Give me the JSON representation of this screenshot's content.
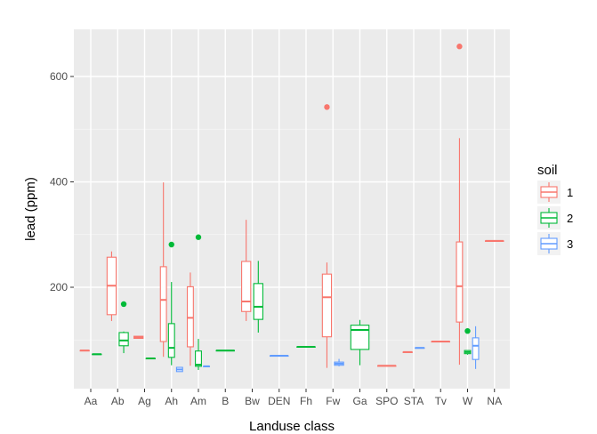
{
  "chart_data": {
    "type": "box",
    "title": "",
    "xlabel": "Landuse class",
    "ylabel": "lead (ppm)",
    "ylim": [
      0,
      690
    ],
    "y_ticks": [
      200,
      400,
      600
    ],
    "grid": true,
    "legend": {
      "title": "soil",
      "position": "right",
      "entries": [
        {
          "label": "1",
          "color": "#F8766D"
        },
        {
          "label": "2",
          "color": "#00BA38"
        },
        {
          "label": "3",
          "color": "#619CFF"
        }
      ]
    },
    "categories": [
      "Aa",
      "Ab",
      "Ag",
      "Ah",
      "Am",
      "B",
      "Bw",
      "DEN",
      "Fh",
      "Fw",
      "Ga",
      "SPO",
      "STA",
      "Tv",
      "W",
      "NA"
    ],
    "series": [
      {
        "name": "1",
        "color": "#F8766D",
        "boxes": [
          {
            "category": "Aa",
            "min": 80,
            "q1": 80,
            "median": 80,
            "q3": 80,
            "max": 80,
            "outliers": []
          },
          {
            "category": "Ab",
            "min": 136,
            "q1": 148,
            "median": 203,
            "q3": 257,
            "max": 268,
            "outliers": []
          },
          {
            "category": "Ag",
            "min": 103,
            "q1": 103,
            "median": 105,
            "q3": 107,
            "max": 107,
            "outliers": []
          },
          {
            "category": "Ah",
            "min": 68,
            "q1": 97,
            "median": 176,
            "q3": 239,
            "max": 399,
            "outliers": []
          },
          {
            "category": "Am",
            "min": 51,
            "q1": 87,
            "median": 142,
            "q3": 201,
            "max": 228,
            "outliers": []
          },
          {
            "category": "Bw",
            "min": 136,
            "q1": 154,
            "median": 173,
            "q3": 249,
            "max": 328,
            "outliers": []
          },
          {
            "category": "Fw",
            "min": 47,
            "q1": 106,
            "median": 181,
            "q3": 225,
            "max": 247,
            "outliers": [
              542
            ]
          },
          {
            "category": "SPO",
            "min": 51,
            "q1": 51,
            "median": 51,
            "q3": 51,
            "max": 51,
            "outliers": []
          },
          {
            "category": "STA",
            "min": 77,
            "q1": 77,
            "median": 77,
            "q3": 77,
            "max": 77,
            "outliers": []
          },
          {
            "category": "Tv",
            "min": 97,
            "q1": 97,
            "median": 97,
            "q3": 97,
            "max": 97,
            "outliers": []
          },
          {
            "category": "W",
            "min": 53,
            "q1": 134,
            "median": 202,
            "q3": 286,
            "max": 483,
            "outliers": [
              657
            ]
          },
          {
            "category": "NA",
            "min": 288,
            "q1": 288,
            "median": 288,
            "q3": 288,
            "max": 288,
            "outliers": []
          }
        ]
      },
      {
        "name": "2",
        "color": "#00BA38",
        "boxes": [
          {
            "category": "Aa",
            "min": 73,
            "q1": 73,
            "median": 73,
            "q3": 73,
            "max": 73,
            "outliers": []
          },
          {
            "category": "Ab",
            "min": 75,
            "q1": 89,
            "median": 99,
            "q3": 114,
            "max": 116,
            "outliers": [
              168
            ]
          },
          {
            "category": "Ag",
            "min": 65,
            "q1": 65,
            "median": 65,
            "q3": 65,
            "max": 65,
            "outliers": []
          },
          {
            "category": "Ah",
            "min": 52,
            "q1": 67,
            "median": 85,
            "q3": 131,
            "max": 210,
            "outliers": [
              281
            ]
          },
          {
            "category": "Am",
            "min": 43,
            "q1": 50,
            "median": 53,
            "q3": 79,
            "max": 102,
            "outliers": [
              295
            ]
          },
          {
            "category": "B",
            "min": 80,
            "q1": 80,
            "median": 80,
            "q3": 80,
            "max": 80,
            "outliers": []
          },
          {
            "category": "Bw",
            "min": 114,
            "q1": 139,
            "median": 163,
            "q3": 207,
            "max": 250,
            "outliers": []
          },
          {
            "category": "Fh",
            "min": 87,
            "q1": 87,
            "median": 87,
            "q3": 87,
            "max": 87,
            "outliers": []
          },
          {
            "category": "Ga",
            "min": 52,
            "q1": 82,
            "median": 119,
            "q3": 128,
            "max": 138,
            "outliers": []
          },
          {
            "category": "W",
            "min": 72,
            "q1": 74,
            "median": 77,
            "q3": 80,
            "max": 80,
            "outliers": [
              117
            ]
          }
        ]
      },
      {
        "name": "3",
        "color": "#619CFF",
        "boxes": [
          {
            "category": "Ah",
            "min": 40,
            "q1": 40,
            "median": 44,
            "q3": 48,
            "max": 48,
            "outliers": []
          },
          {
            "category": "Am",
            "min": 50,
            "q1": 50,
            "median": 50,
            "q3": 50,
            "max": 50,
            "outliers": []
          },
          {
            "category": "DEN",
            "min": 70,
            "q1": 70,
            "median": 70,
            "q3": 70,
            "max": 70,
            "outliers": []
          },
          {
            "category": "Fw",
            "min": 50,
            "q1": 52,
            "median": 55,
            "q3": 58,
            "max": 64,
            "outliers": []
          },
          {
            "category": "STA",
            "min": 85,
            "q1": 85,
            "median": 85,
            "q3": 85,
            "max": 85,
            "outliers": []
          },
          {
            "category": "W",
            "min": 45,
            "q1": 63,
            "median": 89,
            "q3": 104,
            "max": 126,
            "outliers": []
          }
        ]
      }
    ]
  }
}
